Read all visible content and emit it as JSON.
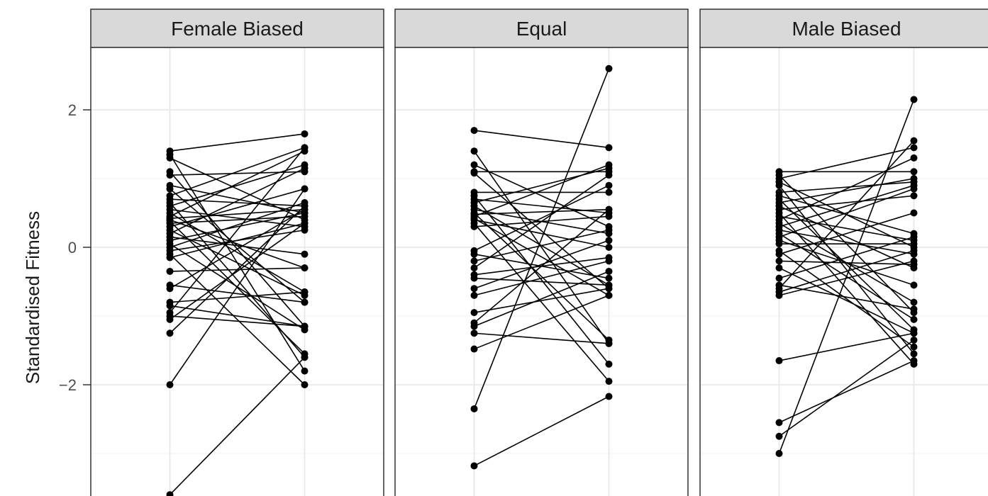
{
  "chart_data": {
    "type": "line",
    "description": "Faceted paired dot-and-line plot: each line connects one genotype's value at the left x position to the right x position",
    "ylabel": "Standardised Fitness",
    "y_ticks": [
      -2,
      0,
      2
    ],
    "ylim": [
      -3.6,
      3.5
    ],
    "x_positions": [
      1,
      2
    ],
    "grid": true,
    "theme": "bw",
    "panels": [
      {
        "title": "Female Biased",
        "pairs": [
          [
            1.4,
            1.65
          ],
          [
            1.35,
            -1.8
          ],
          [
            1.3,
            0.4
          ],
          [
            1.1,
            -1.15
          ],
          [
            1.05,
            1.1
          ],
          [
            0.9,
            0.5
          ],
          [
            0.85,
            -0.8
          ],
          [
            0.75,
            1.45
          ],
          [
            0.7,
            0.6
          ],
          [
            0.65,
            -1.6
          ],
          [
            0.6,
            1.2
          ],
          [
            0.55,
            0.3
          ],
          [
            0.5,
            -0.65
          ],
          [
            0.45,
            1.4
          ],
          [
            0.42,
            0.55
          ],
          [
            0.4,
            -0.3
          ],
          [
            0.38,
            -1.55
          ],
          [
            0.35,
            0.45
          ],
          [
            0.3,
            0.85
          ],
          [
            0.25,
            -0.7
          ],
          [
            0.2,
            1.15
          ],
          [
            0.15,
            -0.1
          ],
          [
            0.1,
            0.5
          ],
          [
            0.05,
            -1.2
          ],
          [
            0.0,
            0.65
          ],
          [
            -0.05,
            0.25
          ],
          [
            -0.1,
            -2.0
          ],
          [
            -0.15,
            0.35
          ],
          [
            -0.35,
            -0.3
          ],
          [
            -0.55,
            -0.8
          ],
          [
            -0.6,
            0.55
          ],
          [
            -0.8,
            -0.65
          ],
          [
            -0.85,
            -1.15
          ],
          [
            -0.95,
            1.45
          ],
          [
            -1.0,
            -1.15
          ],
          [
            -1.05,
            0.35
          ],
          [
            -1.25,
            0.6
          ],
          [
            -2.0,
            0.85
          ],
          [
            -3.6,
            -1.6
          ]
        ]
      },
      {
        "title": "Equal",
        "pairs": [
          [
            1.7,
            1.45
          ],
          [
            1.4,
            -1.4
          ],
          [
            1.2,
            0.3
          ],
          [
            1.1,
            1.1
          ],
          [
            1.08,
            -0.6
          ],
          [
            0.8,
            0.8
          ],
          [
            0.75,
            -1.7
          ],
          [
            0.7,
            0.5
          ],
          [
            0.65,
            1.15
          ],
          [
            0.6,
            -0.55
          ],
          [
            0.55,
            0.2
          ],
          [
            0.5,
            -1.35
          ],
          [
            0.48,
            0.55
          ],
          [
            0.45,
            1.2
          ],
          [
            0.42,
            -0.7
          ],
          [
            0.4,
            0.0
          ],
          [
            0.35,
            -1.95
          ],
          [
            0.3,
            0.45
          ],
          [
            -0.05,
            0.9
          ],
          [
            -0.1,
            -0.45
          ],
          [
            -0.2,
            0.25
          ],
          [
            -0.3,
            1.05
          ],
          [
            -0.4,
            -0.15
          ],
          [
            -0.45,
            -0.55
          ],
          [
            -0.6,
            0.1
          ],
          [
            -0.7,
            -0.2
          ],
          [
            -0.95,
            -0.6
          ],
          [
            -1.1,
            0.55
          ],
          [
            -1.15,
            -0.35
          ],
          [
            -1.25,
            -1.4
          ],
          [
            -1.48,
            -0.7
          ],
          [
            -2.35,
            2.6
          ],
          [
            -3.18,
            -2.17
          ]
        ]
      },
      {
        "title": "Male Biased",
        "pairs": [
          [
            1.1,
            1.1
          ],
          [
            1.05,
            -0.95
          ],
          [
            1.0,
            1.45
          ],
          [
            0.95,
            0.0
          ],
          [
            0.9,
            -1.55
          ],
          [
            0.8,
            0.95
          ],
          [
            0.75,
            0.2
          ],
          [
            0.7,
            -1.2
          ],
          [
            0.65,
            1.0
          ],
          [
            0.6,
            -0.3
          ],
          [
            0.55,
            0.75
          ],
          [
            0.5,
            -1.7
          ],
          [
            0.45,
            0.1
          ],
          [
            0.4,
            1.3
          ],
          [
            0.35,
            -0.8
          ],
          [
            0.3,
            0.9
          ],
          [
            0.25,
            -0.1
          ],
          [
            0.2,
            -1.05
          ],
          [
            0.15,
            0.85
          ],
          [
            0.1,
            -0.55
          ],
          [
            0.05,
            0.05
          ],
          [
            -0.05,
            -1.45
          ],
          [
            -0.1,
            0.5
          ],
          [
            -0.2,
            -0.25
          ],
          [
            -0.3,
            -1.25
          ],
          [
            -0.45,
            0.15
          ],
          [
            -0.55,
            -0.9
          ],
          [
            -0.6,
            1.55
          ],
          [
            -0.65,
            -0.05
          ],
          [
            -0.7,
            -0.2
          ],
          [
            -1.65,
            -1.25
          ],
          [
            -2.55,
            -1.65
          ],
          [
            -2.75,
            -1.35
          ],
          [
            -3.0,
            2.15
          ]
        ]
      }
    ]
  }
}
